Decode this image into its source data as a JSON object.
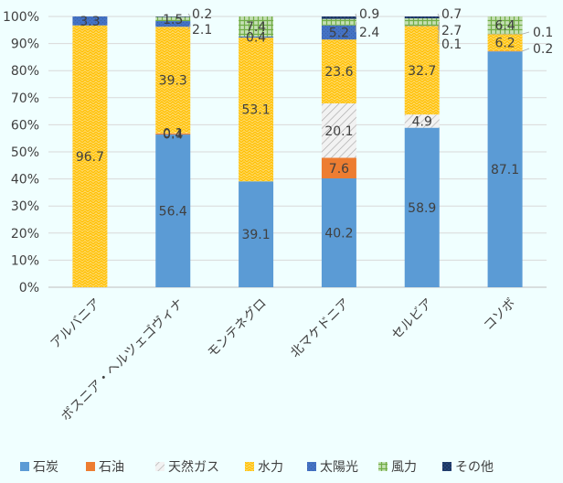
{
  "chart_data": {
    "type": "bar",
    "stacked": true,
    "percent_stacked": true,
    "categories": [
      "アルバニア",
      "ボスニア・ヘルツェゴヴィナ",
      "モンテネグロ",
      "北マケドニア",
      "セルビア",
      "コソボ"
    ],
    "series": [
      {
        "name": "石炭",
        "values": [
          0,
          56.4,
          39.1,
          40.2,
          58.9,
          87.1
        ],
        "labels": [
          "",
          "56.4",
          "39.1",
          "40.2",
          "58.9",
          "87.1"
        ]
      },
      {
        "name": "石油",
        "values": [
          0,
          0.4,
          0,
          7.6,
          0,
          0.2
        ],
        "labels": [
          "",
          "0.4",
          "",
          "7.6",
          "",
          "0.2"
        ]
      },
      {
        "name": "天然ガス",
        "values": [
          0,
          0.1,
          0,
          20.1,
          4.9,
          0
        ],
        "labels": [
          "",
          "0.1",
          "",
          "20.1",
          "4.9",
          ""
        ]
      },
      {
        "name": "水力",
        "values": [
          96.7,
          39.3,
          53.1,
          23.6,
          32.7,
          6.2
        ],
        "labels": [
          "96.7",
          "39.3",
          "53.1",
          "23.6",
          "32.7",
          "6.2"
        ]
      },
      {
        "name": "太陽光",
        "values": [
          3.3,
          2.1,
          0.4,
          5.2,
          0.1,
          0.1
        ],
        "labels": [
          "3.3",
          "2.1",
          "0.4",
          "5.2",
          "0.1",
          "0.1"
        ]
      },
      {
        "name": "風力",
        "values": [
          0,
          1.5,
          7.4,
          2.4,
          2.7,
          6.4
        ],
        "labels": [
          "",
          "1.5",
          "7.4",
          "2.4",
          "2.7",
          "6.4"
        ]
      },
      {
        "name": "その他",
        "values": [
          0,
          0.2,
          0,
          0.9,
          0.7,
          0
        ],
        "labels": [
          "",
          "0.2",
          "",
          "0.9",
          "0.7",
          ""
        ]
      }
    ],
    "ylim": [
      0,
      100
    ],
    "yticks": [
      "0%",
      "10%",
      "20%",
      "30%",
      "40%",
      "50%",
      "60%",
      "70%",
      "80%",
      "90%",
      "100%"
    ],
    "legend_position": "bottom",
    "colors": [
      "#5B9BD5",
      "#ED7D31",
      "#D9D9D9",
      "#FFC000",
      "#4472C4",
      "#70AD47",
      "#264478"
    ]
  }
}
